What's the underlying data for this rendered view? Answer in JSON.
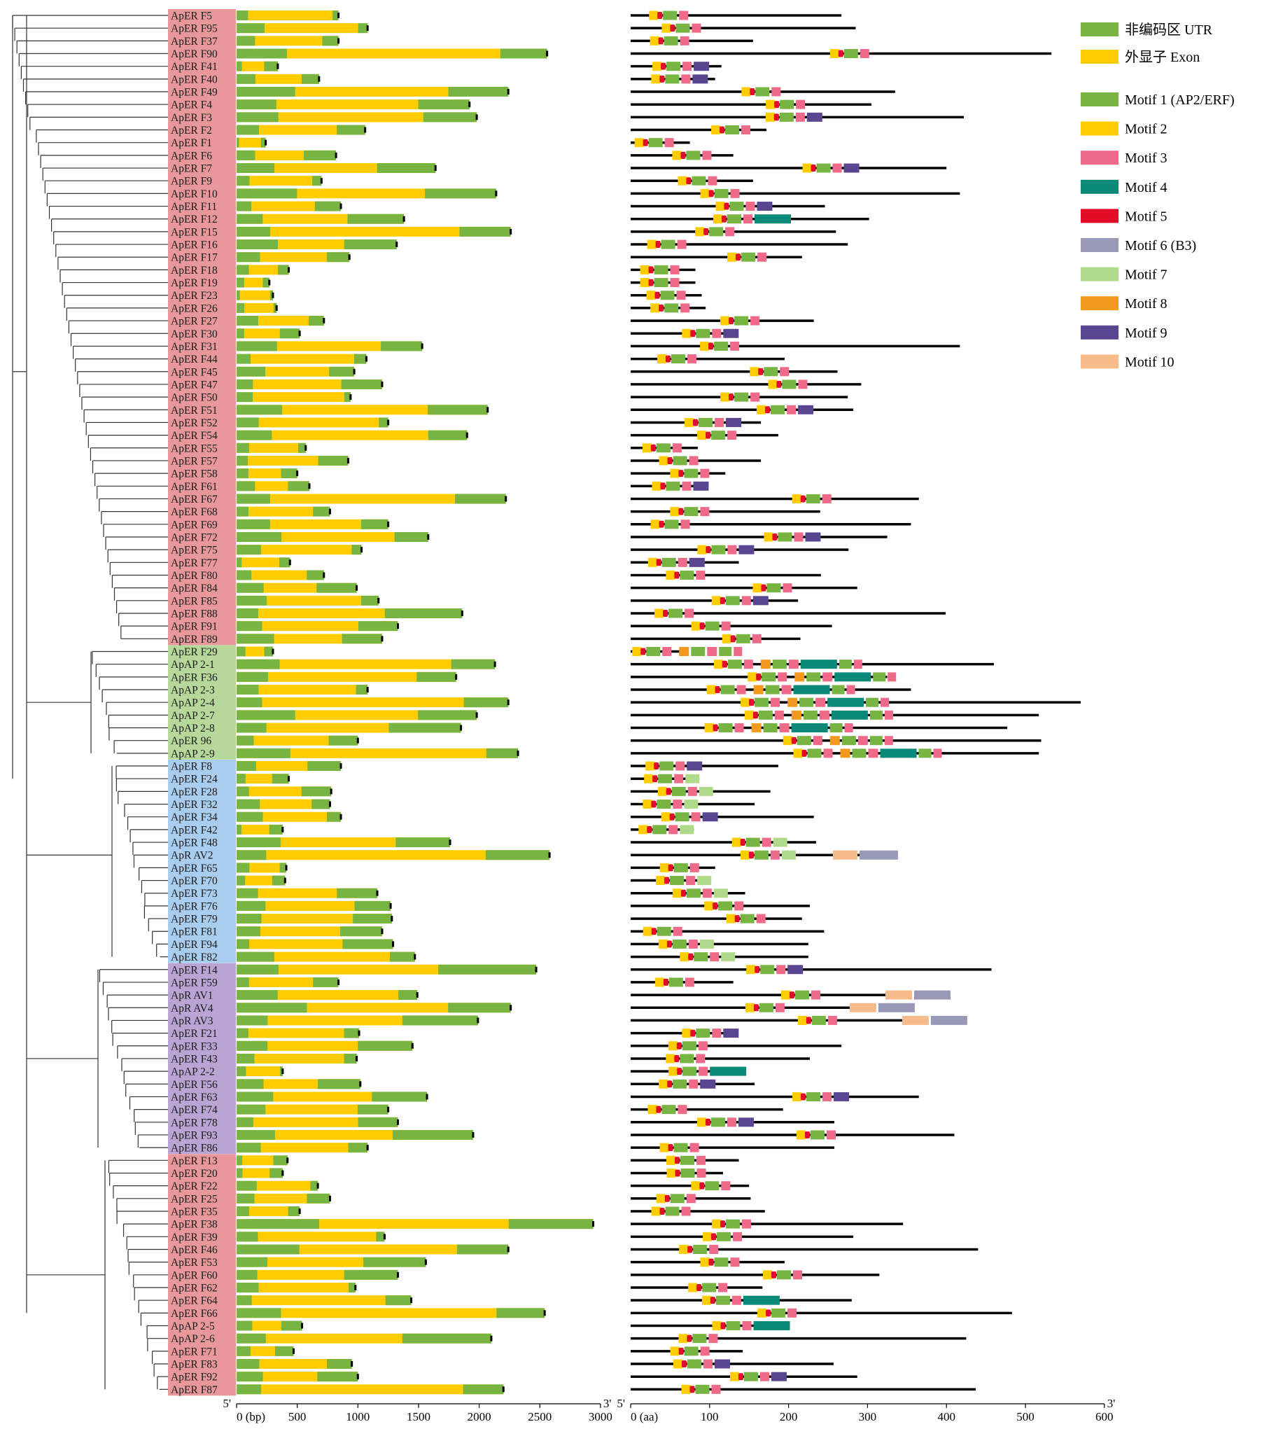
{
  "figure": {
    "genes": [
      "ApER F5",
      "ApER F95",
      "ApER F37",
      "ApER F90",
      "ApER F41",
      "ApER F40",
      "ApER F49",
      "ApER F4",
      "ApER F3",
      "ApER F2",
      "ApER F1",
      "ApER F6",
      "ApER F7",
      "ApER F9",
      "ApER F10",
      "ApER F11",
      "ApER F12",
      "ApER F15",
      "ApER F16",
      "ApER F17",
      "ApER F18",
      "ApER F19",
      "ApER F23",
      "ApER F26",
      "ApER F27",
      "ApER F30",
      "ApER F31",
      "ApER F44",
      "ApER F45",
      "ApER F47",
      "ApER F50",
      "ApER F51",
      "ApER F52",
      "ApER F54",
      "ApER F55",
      "ApER F57",
      "ApER F58",
      "ApER F61",
      "ApER F67",
      "ApER F68",
      "ApER F69",
      "ApER F72",
      "ApER F75",
      "ApER F77",
      "ApER F80",
      "ApER F84",
      "ApER F85",
      "ApER F88",
      "ApER F91",
      "ApER F89",
      "ApER F29",
      "ApAP 2-1",
      "ApER F36",
      "ApAP 2-3",
      "ApAP 2-4",
      "ApAP 2-7",
      "ApAP 2-8",
      "ApER 96",
      "ApAP 2-9",
      "ApER F8",
      "ApER F24",
      "ApER F28",
      "ApER F32",
      "ApER F34",
      "ApER F42",
      "ApER F48",
      "ApR AV2",
      "ApER F65",
      "ApER F70",
      "ApER F73",
      "ApER F76",
      "ApER F79",
      "ApER F81",
      "ApER F94",
      "ApER F82",
      "ApER F14",
      "ApER F59",
      "ApR AV1",
      "ApR AV4",
      "ApR AV3",
      "ApER F21",
      "ApER F33",
      "ApER F43",
      "ApAP 2-2",
      "ApER F56",
      "ApER F63",
      "ApER F74",
      "ApER F78",
      "ApER F93",
      "ApER F86",
      "ApER F13",
      "ApER F20",
      "ApER F22",
      "ApER F25",
      "ApER F35",
      "ApER F38",
      "ApER F39",
      "ApER F46",
      "ApER F53",
      "ApER F60",
      "ApER F62",
      "ApER F64",
      "ApER F66",
      "ApAP 2-5",
      "ApAP 2-6",
      "ApER F71",
      "ApER F83",
      "ApER F92",
      "ApER F87"
    ],
    "group_colors": [
      "#e8989b",
      "#b6d89a",
      "#a9cdef",
      "#b9a4d4",
      "#e8989b"
    ],
    "group_ranges": [
      [
        0,
        49
      ],
      [
        50,
        58
      ],
      [
        59,
        74
      ],
      [
        75,
        89
      ],
      [
        90,
        108
      ]
    ],
    "utr_color": "#77b442",
    "exon_color": "#ffcc00",
    "line_color": "#000000",
    "gene_axis": {
      "ticks": [
        "0 (bp)",
        "500",
        "1000",
        "1500",
        "2000",
        "2500",
        "3000"
      ],
      "start_label": "5'",
      "end_label": "3'"
    },
    "protein_axis": {
      "ticks": [
        "0 (aa)",
        "100",
        "200",
        "300",
        "400",
        "500",
        "600"
      ],
      "start_label": "5'",
      "end_label": "3'"
    }
  },
  "legend": {
    "items": [
      {
        "label": "非编码区  UTR",
        "color": "#77b442"
      },
      {
        "label": "外显子 Exon",
        "color": "#ffcc00"
      },
      {
        "label": "Motif 1 (AP2/ERF)",
        "color": "#77b442"
      },
      {
        "label": "Motif 2",
        "color": "#ffcc00"
      },
      {
        "label": "Motif 3",
        "color": "#ef6a88"
      },
      {
        "label": "Motif 4",
        "color": "#0a8878"
      },
      {
        "label": "Motif 5",
        "color": "#e30b25"
      },
      {
        "label": "Motif 6 (B3)",
        "color": "#9a98b7"
      },
      {
        "label": "Motif 7",
        "color": "#b1d98a"
      },
      {
        "label": "Motif 8",
        "color": "#f39a1e"
      },
      {
        "label": "Motif 9",
        "color": "#5a4690"
      },
      {
        "label": "Motif 10",
        "color": "#f8bb8c"
      }
    ]
  }
}
